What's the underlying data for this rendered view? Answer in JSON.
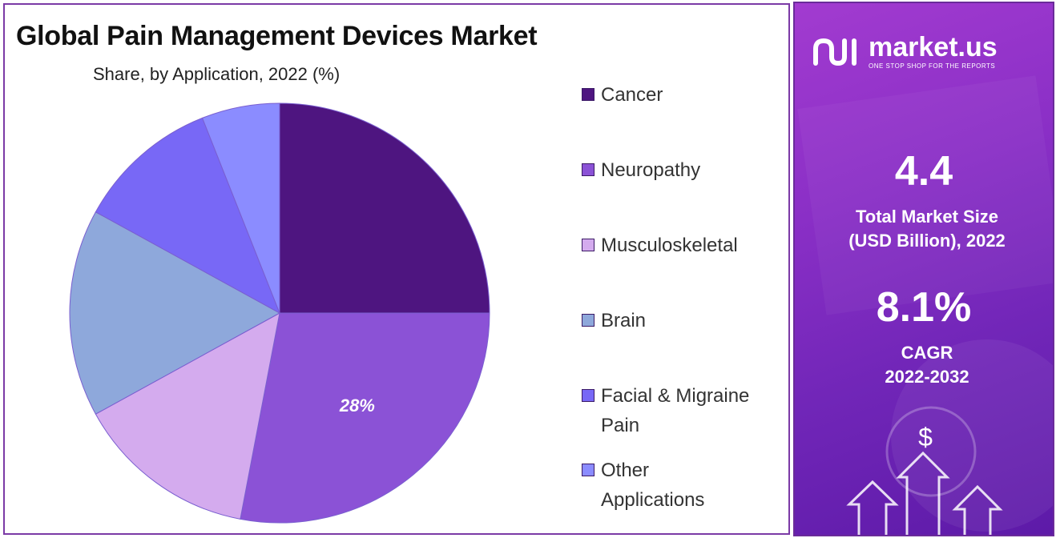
{
  "chart_data": {
    "type": "pie",
    "title": "Global Pain Management Devices Market",
    "subtitle": "Share, by Application, 2022 (%)",
    "categories": [
      "Cancer",
      "Neuropathy",
      "Musculoskeletal",
      "Brain",
      "Facial & Migraine Pain",
      "Other Applications"
    ],
    "values": [
      25,
      28,
      14,
      16,
      11,
      6
    ],
    "data_labels": [
      "",
      "28%",
      "",
      "",
      "",
      ""
    ],
    "colors": [
      "#4e1580",
      "#8b52d6",
      "#d4abee",
      "#8ea8db",
      "#7868f6",
      "#8b8cff"
    ],
    "legend_position": "right",
    "legend_lines": [
      [
        "Cancer"
      ],
      [
        "Neuropathy"
      ],
      [
        "Musculoskeletal"
      ],
      [
        "Brain"
      ],
      [
        "Facial & Migraine",
        "Pain"
      ],
      [
        "Other",
        "Applications"
      ]
    ]
  },
  "brand": {
    "name": "market.us",
    "tagline": "ONE STOP SHOP FOR THE REPORTS"
  },
  "stats": {
    "market_size_value": "4.4",
    "market_size_label_line1": "Total Market Size",
    "market_size_label_line2": "(USD Billion), 2022",
    "cagr_value": "8.1%",
    "cagr_label_line1": "CAGR",
    "cagr_label_line2": "2022-2032"
  },
  "decor": {
    "dollar_symbol": "$"
  }
}
